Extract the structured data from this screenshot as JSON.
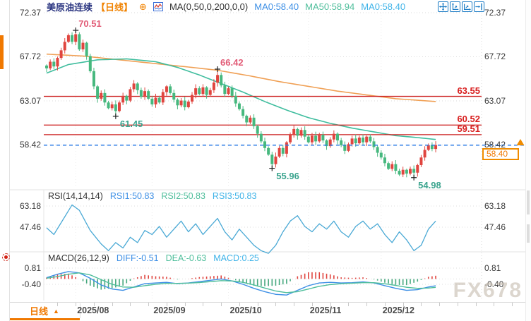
{
  "header": {
    "symbol": "美原油连续",
    "period": "【日线】",
    "add_icon": "⊕",
    "indicator": "MA(0,50,0,200,0,0)",
    "ma_values": [
      {
        "text": "MA0:58.40",
        "color": "#3D8FE5"
      },
      {
        "text": "MA50:58.94",
        "color": "#4FBE9B"
      },
      {
        "text": "MA0:58.40",
        "color": "#3FB3E8"
      }
    ]
  },
  "toolbar": {
    "buttons": [
      "pan",
      "scale-y",
      "scale-x",
      "jump-latest"
    ],
    "color": "#1A7BC4"
  },
  "rsi_panel": {
    "title": "RSI(14,14,14)",
    "values": [
      {
        "text": "RSI1:50.83",
        "color": "#3D8FE5"
      },
      {
        "text": "RSI2:50.83",
        "color": "#4FBE9B"
      },
      {
        "text": "RSI3:50.83",
        "color": "#3FB3E8"
      }
    ]
  },
  "macd_panel": {
    "title": "MACD(26,12,9)",
    "values": [
      {
        "text": "DIFF:-0.51",
        "color": "#3D8FE5"
      },
      {
        "text": "DEA:-0.63",
        "color": "#4FBE9B"
      },
      {
        "text": "MACD:0.25",
        "color": "#3FB3E8"
      }
    ]
  },
  "bottom": {
    "tab": "日线",
    "tab_arrow": "▲",
    "month_labels": [
      "2025/08",
      "2025/09",
      "2025/10",
      "2025/11",
      "2025/12"
    ]
  },
  "watermark": "FX678",
  "price_tag": {
    "label": "58.40",
    "color": "#F08C00"
  },
  "colors": {
    "candle_up": "#E0453F",
    "candle_down": "#46B87E",
    "ma200_line": "#F0A055",
    "ma50_line": "#3FBD9E",
    "hline_red": "#CC1F1F",
    "last_price_dash": "#2E7DE5",
    "rsi_line": "#4AA9D5",
    "diff_line": "#3D8FE5",
    "dea_line": "#4FBE9B",
    "hist_pos": "#E0453F",
    "hist_neg": "#46A87E",
    "accent_orange": "#F07800",
    "toolbar_blue": "#1A7BC4"
  },
  "chart_data": [
    {
      "type": "candlestick",
      "title": "美原油连续 日线",
      "y_ticks": [
        72.37,
        67.72,
        63.07,
        58.42
      ],
      "ylim": [
        53.9,
        72.75
      ],
      "month_start_indices": [
        8,
        29,
        50,
        72,
        92
      ],
      "closes": [
        66.5,
        67.2,
        66.7,
        67.6,
        68.4,
        69.3,
        70.0,
        69.3,
        70.1,
        68.5,
        69.2,
        67.8,
        66.2,
        64.6,
        63.3,
        63.9,
        62.9,
        62.3,
        62.7,
        62.0,
        62.9,
        63.6,
        63.1,
        64.3,
        64.9,
        64.2,
        63.5,
        64.1,
        63.3,
        62.7,
        63.4,
        62.9,
        64.0,
        64.6,
        63.9,
        63.2,
        62.6,
        63.1,
        62.4,
        63.0,
        63.7,
        64.4,
        63.8,
        64.5,
        63.7,
        64.2,
        65.0,
        65.8,
        64.7,
        63.8,
        64.4,
        63.6,
        62.8,
        62.2,
        61.5,
        60.8,
        61.3,
        60.4,
        59.6,
        58.8,
        58.1,
        57.4,
        56.4,
        57.2,
        58.1,
        57.5,
        58.7,
        59.5,
        60.1,
        59.4,
        60.0,
        59.3,
        58.7,
        59.4,
        58.8,
        59.5,
        58.9,
        58.3,
        59.0,
        59.6,
        58.9,
        58.4,
        57.8,
        58.5,
        59.1,
        58.6,
        59.2,
        58.7,
        59.3,
        58.8,
        58.2,
        57.6,
        57.1,
        56.5,
        55.9,
        56.4,
        55.7,
        55.3,
        55.8,
        55.4,
        55.9,
        55.5,
        56.3,
        57.1,
        57.9,
        58.4,
        58.0,
        58.4
      ],
      "markers": [
        {
          "index": 8,
          "side": "high",
          "value": 70.51,
          "label": "70.51"
        },
        {
          "index": 19,
          "side": "low",
          "value": 61.45,
          "label": "61.45"
        },
        {
          "index": 47,
          "side": "high",
          "value": 66.42,
          "label": "66.42"
        },
        {
          "index": 62,
          "side": "low",
          "value": 55.96,
          "label": "55.96"
        },
        {
          "index": 101,
          "side": "low",
          "value": 54.98,
          "label": "54.98"
        }
      ],
      "hlines": [
        {
          "value": 63.55,
          "label": "63.55"
        },
        {
          "value": 60.52,
          "label": "60.52"
        },
        {
          "value": 59.51,
          "label": "59.51"
        }
      ],
      "last_price": {
        "value": 58.4,
        "label": "58.40"
      },
      "ma_overlays": [
        {
          "name": "MA200",
          "color": "#F0A055",
          "points": [
            [
              0,
              68.0
            ],
            [
              10,
              67.8
            ],
            [
              20,
              67.4
            ],
            [
              30,
              67.0
            ],
            [
              40,
              66.6
            ],
            [
              47,
              66.3
            ],
            [
              56,
              65.7
            ],
            [
              64,
              65.1
            ],
            [
              72,
              64.6
            ],
            [
              80,
              64.1
            ],
            [
              88,
              63.7
            ],
            [
              96,
              63.3
            ],
            [
              107,
              63.0
            ]
          ]
        },
        {
          "name": "MA50",
          "color": "#3FBD9E",
          "points": [
            [
              0,
              66.0
            ],
            [
              6,
              66.9
            ],
            [
              14,
              67.4
            ],
            [
              22,
              67.5
            ],
            [
              30,
              67.2
            ],
            [
              36,
              66.6
            ],
            [
              42,
              65.8
            ],
            [
              48,
              64.9
            ],
            [
              54,
              64.0
            ],
            [
              60,
              63.0
            ],
            [
              66,
              62.1
            ],
            [
              72,
              61.3
            ],
            [
              78,
              60.7
            ],
            [
              84,
              60.2
            ],
            [
              90,
              59.8
            ],
            [
              96,
              59.4
            ],
            [
              102,
              59.2
            ],
            [
              107,
              59.0
            ]
          ]
        }
      ]
    },
    {
      "type": "line",
      "title": "RSI(14,14,14)",
      "y_ticks": [
        63.18,
        47.46
      ],
      "ylim": [
        27,
        75
      ],
      "series": [
        {
          "name": "RSI",
          "color": "#4AA9D5",
          "points": [
            [
              0,
              47
            ],
            [
              2,
              42
            ],
            [
              7,
              64
            ],
            [
              9,
              60
            ],
            [
              12,
              45
            ],
            [
              15,
              35
            ],
            [
              17,
              30
            ],
            [
              19,
              36
            ],
            [
              21,
              32
            ],
            [
              23,
              40
            ],
            [
              25,
              36
            ],
            [
              27,
              45
            ],
            [
              29,
              42
            ],
            [
              31,
              48
            ],
            [
              33,
              40
            ],
            [
              35,
              46
            ],
            [
              37,
              52
            ],
            [
              39,
              44
            ],
            [
              41,
              50
            ],
            [
              43,
              42
            ],
            [
              45,
              48
            ],
            [
              47,
              54
            ],
            [
              49,
              44
            ],
            [
              51,
              38
            ],
            [
              53,
              46
            ],
            [
              55,
              40
            ],
            [
              57,
              34
            ],
            [
              59,
              30
            ],
            [
              61,
              28
            ],
            [
              63,
              34
            ],
            [
              65,
              44
            ],
            [
              67,
              52
            ],
            [
              69,
              56
            ],
            [
              71,
              48
            ],
            [
              73,
              44
            ],
            [
              75,
              50
            ],
            [
              77,
              46
            ],
            [
              79,
              52
            ],
            [
              81,
              44
            ],
            [
              83,
              40
            ],
            [
              85,
              48
            ],
            [
              87,
              52
            ],
            [
              89,
              46
            ],
            [
              91,
              50
            ],
            [
              93,
              42
            ],
            [
              95,
              36
            ],
            [
              97,
              44
            ],
            [
              99,
              38
            ],
            [
              101,
              30
            ],
            [
              103,
              34
            ],
            [
              105,
              46
            ],
            [
              107,
              52
            ]
          ]
        }
      ]
    },
    {
      "type": "macd",
      "title": "MACD(26,12,9)",
      "y_ticks": [
        0.81,
        -0.4
      ],
      "ylim": [
        -1.35,
        0.95
      ],
      "histogram_rule": "2*(DIFF-DEA)",
      "diff": {
        "name": "DIFF",
        "color": "#3D8FE5",
        "points": [
          [
            0,
            0.1
          ],
          [
            3,
            0.35
          ],
          [
            6,
            0.55
          ],
          [
            9,
            0.45
          ],
          [
            12,
            0.05
          ],
          [
            15,
            -0.45
          ],
          [
            18,
            -0.75
          ],
          [
            21,
            -0.85
          ],
          [
            24,
            -0.6
          ],
          [
            27,
            -0.35
          ],
          [
            30,
            -0.3
          ],
          [
            33,
            -0.25
          ],
          [
            36,
            -0.35
          ],
          [
            39,
            -0.3
          ],
          [
            42,
            -0.2
          ],
          [
            45,
            -0.1
          ],
          [
            48,
            0.0
          ],
          [
            51,
            -0.15
          ],
          [
            54,
            -0.4
          ],
          [
            57,
            -0.7
          ],
          [
            60,
            -0.95
          ],
          [
            63,
            -1.15
          ],
          [
            66,
            -1.2
          ],
          [
            69,
            -0.85
          ],
          [
            72,
            -0.5
          ],
          [
            75,
            -0.3
          ],
          [
            78,
            -0.25
          ],
          [
            81,
            -0.3
          ],
          [
            84,
            -0.28
          ],
          [
            87,
            -0.22
          ],
          [
            90,
            -0.3
          ],
          [
            93,
            -0.5
          ],
          [
            96,
            -0.7
          ],
          [
            99,
            -0.85
          ],
          [
            102,
            -0.8
          ],
          [
            105,
            -0.6
          ],
          [
            107,
            -0.51
          ]
        ]
      },
      "dea": {
        "name": "DEA",
        "color": "#4FBE9B",
        "points": [
          [
            0,
            0.05
          ],
          [
            3,
            0.18
          ],
          [
            6,
            0.35
          ],
          [
            9,
            0.45
          ],
          [
            12,
            0.3
          ],
          [
            15,
            -0.05
          ],
          [
            18,
            -0.4
          ],
          [
            21,
            -0.6
          ],
          [
            24,
            -0.62
          ],
          [
            27,
            -0.5
          ],
          [
            30,
            -0.4
          ],
          [
            33,
            -0.33
          ],
          [
            36,
            -0.33
          ],
          [
            39,
            -0.31
          ],
          [
            42,
            -0.27
          ],
          [
            45,
            -0.2
          ],
          [
            48,
            -0.13
          ],
          [
            51,
            -0.15
          ],
          [
            54,
            -0.25
          ],
          [
            57,
            -0.45
          ],
          [
            60,
            -0.68
          ],
          [
            63,
            -0.9
          ],
          [
            66,
            -1.02
          ],
          [
            69,
            -0.95
          ],
          [
            72,
            -0.75
          ],
          [
            75,
            -0.55
          ],
          [
            78,
            -0.42
          ],
          [
            81,
            -0.36
          ],
          [
            84,
            -0.32
          ],
          [
            87,
            -0.28
          ],
          [
            90,
            -0.28
          ],
          [
            93,
            -0.36
          ],
          [
            96,
            -0.48
          ],
          [
            99,
            -0.62
          ],
          [
            102,
            -0.7
          ],
          [
            105,
            -0.68
          ],
          [
            107,
            -0.63
          ]
        ]
      }
    }
  ]
}
